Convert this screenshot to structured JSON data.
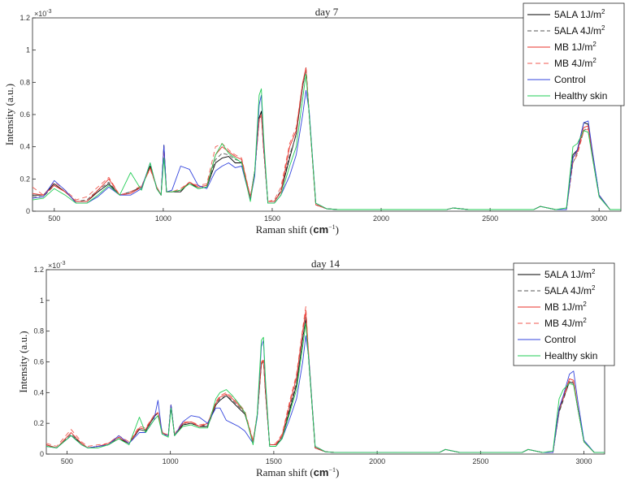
{
  "chart_data": [
    {
      "type": "line",
      "title": "day 7",
      "xlabel": "Raman shift (",
      "xlabel_unit": "cm",
      "xlabel_exp": "−1",
      "xlabel_close": ")",
      "ylabel": "Intensity (a.u.)",
      "y_exponent": "×10",
      "y_exponent_power": "-3",
      "xlim": [
        400,
        3100
      ],
      "ylim": [
        0,
        1.2
      ],
      "xticks": [
        "500",
        "1000",
        "1500",
        "2000",
        "2500",
        "3000"
      ],
      "yticks": [
        "0",
        "0.2",
        "0.4",
        "0.6",
        "0.8",
        "1",
        "1.2"
      ],
      "legend_position": "top-right",
      "x": [
        400,
        450,
        500,
        550,
        600,
        650,
        700,
        750,
        800,
        850,
        900,
        940,
        970,
        990,
        1003,
        1015,
        1040,
        1080,
        1120,
        1160,
        1200,
        1240,
        1270,
        1300,
        1330,
        1360,
        1400,
        1420,
        1440,
        1450,
        1460,
        1480,
        1510,
        1540,
        1580,
        1610,
        1640,
        1655,
        1670,
        1700,
        1750,
        1800,
        1900,
        2000,
        2100,
        2200,
        2300,
        2330,
        2400,
        2500,
        2600,
        2700,
        2730,
        2800,
        2850,
        2880,
        2900,
        2930,
        2950,
        2970,
        3000,
        3050,
        3100
      ],
      "series": [
        {
          "name": "5ALA 1J/m",
          "sup": "2",
          "color": "#000000",
          "dash": "",
          "values": [
            0.1,
            0.1,
            0.17,
            0.12,
            0.06,
            0.06,
            0.12,
            0.17,
            0.1,
            0.12,
            0.15,
            0.28,
            0.15,
            0.1,
            0.41,
            0.12,
            0.12,
            0.12,
            0.18,
            0.14,
            0.15,
            0.3,
            0.33,
            0.34,
            0.3,
            0.3,
            0.08,
            0.25,
            0.58,
            0.62,
            0.4,
            0.06,
            0.06,
            0.12,
            0.33,
            0.48,
            0.78,
            0.89,
            0.6,
            0.04,
            0.015,
            0.01,
            0.01,
            0.01,
            0.01,
            0.01,
            0.01,
            0.02,
            0.01,
            0.01,
            0.01,
            0.01,
            0.03,
            0.01,
            0.01,
            0.35,
            0.38,
            0.55,
            0.54,
            0.36,
            0.1,
            0.01,
            0.01
          ]
        },
        {
          "name": "5ALA 4J/m",
          "sup": "2",
          "color": "#555555",
          "dash": "5,3",
          "values": [
            0.09,
            0.09,
            0.16,
            0.12,
            0.06,
            0.07,
            0.13,
            0.18,
            0.1,
            0.12,
            0.15,
            0.27,
            0.15,
            0.1,
            0.39,
            0.12,
            0.12,
            0.13,
            0.18,
            0.15,
            0.16,
            0.32,
            0.36,
            0.35,
            0.32,
            0.31,
            0.09,
            0.25,
            0.56,
            0.6,
            0.4,
            0.06,
            0.06,
            0.13,
            0.35,
            0.47,
            0.77,
            0.88,
            0.6,
            0.04,
            0.015,
            0.01,
            0.01,
            0.01,
            0.01,
            0.01,
            0.01,
            0.02,
            0.01,
            0.01,
            0.01,
            0.01,
            0.03,
            0.01,
            0.01,
            0.3,
            0.36,
            0.5,
            0.52,
            0.34,
            0.09,
            0.01,
            0.01
          ]
        },
        {
          "name": "MB 1J/m",
          "sup": "2",
          "color": "#e8302a",
          "dash": "",
          "values": [
            0.11,
            0.1,
            0.16,
            0.12,
            0.06,
            0.06,
            0.13,
            0.2,
            0.1,
            0.11,
            0.15,
            0.27,
            0.15,
            0.1,
            0.4,
            0.12,
            0.12,
            0.13,
            0.18,
            0.15,
            0.16,
            0.35,
            0.4,
            0.37,
            0.34,
            0.32,
            0.08,
            0.25,
            0.57,
            0.6,
            0.4,
            0.06,
            0.06,
            0.12,
            0.4,
            0.5,
            0.8,
            0.89,
            0.6,
            0.04,
            0.015,
            0.01,
            0.01,
            0.01,
            0.01,
            0.01,
            0.01,
            0.02,
            0.01,
            0.01,
            0.01,
            0.01,
            0.03,
            0.01,
            0.01,
            0.33,
            0.37,
            0.52,
            0.53,
            0.35,
            0.1,
            0.01,
            0.01
          ]
        },
        {
          "name": "MB 4J/m",
          "sup": "2",
          "color": "#f05a50",
          "dash": "6,4",
          "values": [
            0.15,
            0.1,
            0.18,
            0.13,
            0.07,
            0.09,
            0.15,
            0.21,
            0.1,
            0.12,
            0.16,
            0.26,
            0.15,
            0.1,
            0.38,
            0.12,
            0.12,
            0.14,
            0.18,
            0.16,
            0.17,
            0.4,
            0.42,
            0.38,
            0.35,
            0.33,
            0.09,
            0.25,
            0.57,
            0.6,
            0.4,
            0.06,
            0.07,
            0.15,
            0.42,
            0.52,
            0.8,
            0.89,
            0.6,
            0.04,
            0.015,
            0.01,
            0.01,
            0.01,
            0.01,
            0.01,
            0.01,
            0.02,
            0.01,
            0.01,
            0.01,
            0.01,
            0.03,
            0.01,
            0.01,
            0.3,
            0.35,
            0.5,
            0.51,
            0.33,
            0.09,
            0.01,
            0.01
          ]
        },
        {
          "name": "Control",
          "sup": "",
          "color": "#3344dd",
          "dash": "",
          "values": [
            0.08,
            0.09,
            0.19,
            0.13,
            0.05,
            0.05,
            0.09,
            0.15,
            0.1,
            0.1,
            0.14,
            0.3,
            0.14,
            0.1,
            0.41,
            0.12,
            0.13,
            0.28,
            0.26,
            0.16,
            0.14,
            0.25,
            0.28,
            0.3,
            0.27,
            0.28,
            0.07,
            0.22,
            0.66,
            0.72,
            0.45,
            0.05,
            0.05,
            0.1,
            0.22,
            0.35,
            0.6,
            0.75,
            0.62,
            0.05,
            0.015,
            0.01,
            0.01,
            0.01,
            0.01,
            0.01,
            0.01,
            0.02,
            0.01,
            0.01,
            0.01,
            0.01,
            0.03,
            0.01,
            0.01,
            0.33,
            0.38,
            0.55,
            0.56,
            0.37,
            0.1,
            0.01,
            0.01
          ]
        },
        {
          "name": "Healthy skin",
          "sup": "",
          "color": "#22cc55",
          "dash": "",
          "values": [
            0.07,
            0.08,
            0.14,
            0.1,
            0.05,
            0.05,
            0.1,
            0.16,
            0.1,
            0.24,
            0.13,
            0.3,
            0.14,
            0.1,
            0.33,
            0.12,
            0.12,
            0.13,
            0.17,
            0.14,
            0.15,
            0.35,
            0.42,
            0.36,
            0.33,
            0.3,
            0.06,
            0.25,
            0.72,
            0.76,
            0.48,
            0.05,
            0.05,
            0.1,
            0.28,
            0.4,
            0.7,
            0.85,
            0.6,
            0.05,
            0.015,
            0.01,
            0.01,
            0.01,
            0.01,
            0.01,
            0.01,
            0.02,
            0.01,
            0.01,
            0.01,
            0.01,
            0.03,
            0.01,
            0.02,
            0.4,
            0.42,
            0.5,
            0.49,
            0.33,
            0.09,
            0.01,
            0.01
          ]
        }
      ]
    },
    {
      "type": "line",
      "title": "day 14",
      "xlabel": "Raman shift (",
      "xlabel_unit": "cm",
      "xlabel_exp": "−1",
      "xlabel_close": ")",
      "ylabel": "Intensity (a.u.)",
      "y_exponent": "×10",
      "y_exponent_power": "-3",
      "xlim": [
        400,
        3100
      ],
      "ylim": [
        0,
        1.2
      ],
      "xticks": [
        "500",
        "1000",
        "1500",
        "2000",
        "2500",
        "3000"
      ],
      "yticks": [
        "0",
        "0.2",
        "0.4",
        "0.6",
        "0.8",
        "1",
        "1.2"
      ],
      "legend_position": "top-right",
      "x": [
        400,
        450,
        520,
        570,
        600,
        650,
        700,
        750,
        800,
        850,
        880,
        920,
        940,
        960,
        990,
        1003,
        1020,
        1060,
        1100,
        1140,
        1180,
        1220,
        1240,
        1270,
        1300,
        1330,
        1360,
        1400,
        1420,
        1440,
        1450,
        1460,
        1480,
        1510,
        1540,
        1580,
        1610,
        1640,
        1655,
        1670,
        1700,
        1750,
        1800,
        1900,
        2000,
        2100,
        2200,
        2300,
        2330,
        2400,
        2500,
        2600,
        2700,
        2730,
        2800,
        2850,
        2880,
        2900,
        2930,
        2950,
        2970,
        3000,
        3050,
        3100
      ],
      "series": [
        {
          "name": "5ALA 1J/m",
          "sup": "2",
          "color": "#000000",
          "dash": "",
          "values": [
            0.06,
            0.04,
            0.12,
            0.07,
            0.04,
            0.05,
            0.06,
            0.1,
            0.07,
            0.16,
            0.15,
            0.24,
            0.27,
            0.14,
            0.12,
            0.32,
            0.12,
            0.19,
            0.2,
            0.18,
            0.18,
            0.32,
            0.35,
            0.38,
            0.34,
            0.3,
            0.26,
            0.08,
            0.25,
            0.58,
            0.61,
            0.4,
            0.06,
            0.06,
            0.1,
            0.3,
            0.45,
            0.75,
            0.88,
            0.6,
            0.04,
            0.015,
            0.01,
            0.01,
            0.01,
            0.01,
            0.01,
            0.01,
            0.03,
            0.01,
            0.01,
            0.01,
            0.01,
            0.03,
            0.01,
            0.01,
            0.28,
            0.36,
            0.47,
            0.46,
            0.3,
            0.08,
            0.01,
            0.01
          ]
        },
        {
          "name": "5ALA 4J/m",
          "sup": "2",
          "color": "#555555",
          "dash": "5,3",
          "values": [
            0.06,
            0.04,
            0.13,
            0.07,
            0.04,
            0.05,
            0.06,
            0.11,
            0.07,
            0.16,
            0.15,
            0.24,
            0.27,
            0.14,
            0.12,
            0.32,
            0.12,
            0.2,
            0.2,
            0.18,
            0.19,
            0.33,
            0.36,
            0.38,
            0.35,
            0.31,
            0.27,
            0.08,
            0.25,
            0.58,
            0.61,
            0.4,
            0.06,
            0.06,
            0.11,
            0.32,
            0.47,
            0.76,
            0.89,
            0.6,
            0.04,
            0.015,
            0.01,
            0.01,
            0.01,
            0.01,
            0.01,
            0.01,
            0.03,
            0.01,
            0.01,
            0.01,
            0.01,
            0.03,
            0.01,
            0.01,
            0.27,
            0.35,
            0.47,
            0.47,
            0.3,
            0.08,
            0.01,
            0.01
          ]
        },
        {
          "name": "MB 1J/m",
          "sup": "2",
          "color": "#e8302a",
          "dash": "",
          "values": [
            0.06,
            0.04,
            0.14,
            0.07,
            0.04,
            0.05,
            0.07,
            0.11,
            0.07,
            0.17,
            0.16,
            0.25,
            0.27,
            0.14,
            0.12,
            0.32,
            0.12,
            0.2,
            0.21,
            0.18,
            0.2,
            0.33,
            0.37,
            0.39,
            0.36,
            0.32,
            0.27,
            0.08,
            0.25,
            0.59,
            0.61,
            0.4,
            0.06,
            0.06,
            0.12,
            0.34,
            0.5,
            0.8,
            0.93,
            0.62,
            0.04,
            0.015,
            0.01,
            0.01,
            0.01,
            0.01,
            0.01,
            0.01,
            0.03,
            0.01,
            0.01,
            0.01,
            0.01,
            0.03,
            0.01,
            0.01,
            0.3,
            0.37,
            0.49,
            0.48,
            0.31,
            0.08,
            0.01,
            0.01
          ]
        },
        {
          "name": "MB 4J/m",
          "sup": "2",
          "color": "#f05a50",
          "dash": "6,4",
          "values": [
            0.07,
            0.05,
            0.16,
            0.08,
            0.05,
            0.06,
            0.07,
            0.12,
            0.08,
            0.18,
            0.17,
            0.25,
            0.27,
            0.15,
            0.12,
            0.3,
            0.13,
            0.21,
            0.21,
            0.19,
            0.2,
            0.34,
            0.38,
            0.4,
            0.37,
            0.33,
            0.28,
            0.09,
            0.26,
            0.6,
            0.62,
            0.41,
            0.06,
            0.07,
            0.13,
            0.36,
            0.52,
            0.82,
            0.96,
            0.63,
            0.05,
            0.015,
            0.01,
            0.01,
            0.01,
            0.01,
            0.01,
            0.01,
            0.03,
            0.01,
            0.01,
            0.01,
            0.01,
            0.03,
            0.01,
            0.01,
            0.29,
            0.36,
            0.48,
            0.47,
            0.3,
            0.08,
            0.01,
            0.01
          ]
        },
        {
          "name": "Control",
          "sup": "",
          "color": "#3344dd",
          "dash": "",
          "values": [
            0.05,
            0.04,
            0.12,
            0.06,
            0.04,
            0.05,
            0.06,
            0.12,
            0.07,
            0.14,
            0.14,
            0.22,
            0.35,
            0.13,
            0.12,
            0.32,
            0.12,
            0.21,
            0.25,
            0.24,
            0.2,
            0.3,
            0.3,
            0.22,
            0.2,
            0.18,
            0.15,
            0.07,
            0.24,
            0.7,
            0.74,
            0.46,
            0.05,
            0.05,
            0.1,
            0.24,
            0.36,
            0.6,
            0.77,
            0.62,
            0.05,
            0.015,
            0.01,
            0.01,
            0.01,
            0.01,
            0.01,
            0.01,
            0.03,
            0.01,
            0.01,
            0.01,
            0.01,
            0.03,
            0.01,
            0.01,
            0.3,
            0.38,
            0.52,
            0.54,
            0.35,
            0.09,
            0.01,
            0.01
          ]
        },
        {
          "name": "Healthy skin",
          "sup": "",
          "color": "#22cc55",
          "dash": "",
          "values": [
            0.05,
            0.04,
            0.12,
            0.06,
            0.04,
            0.04,
            0.06,
            0.1,
            0.06,
            0.24,
            0.14,
            0.22,
            0.25,
            0.13,
            0.11,
            0.3,
            0.12,
            0.18,
            0.19,
            0.17,
            0.17,
            0.36,
            0.4,
            0.42,
            0.38,
            0.33,
            0.27,
            0.06,
            0.26,
            0.74,
            0.76,
            0.48,
            0.05,
            0.05,
            0.1,
            0.28,
            0.42,
            0.7,
            0.85,
            0.6,
            0.05,
            0.015,
            0.01,
            0.01,
            0.01,
            0.01,
            0.01,
            0.01,
            0.03,
            0.01,
            0.01,
            0.01,
            0.01,
            0.03,
            0.01,
            0.02,
            0.36,
            0.42,
            0.46,
            0.45,
            0.3,
            0.08,
            0.01,
            0.01
          ]
        }
      ]
    }
  ]
}
